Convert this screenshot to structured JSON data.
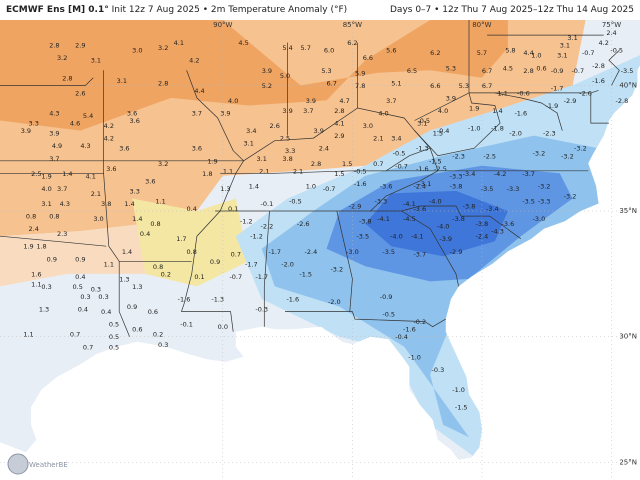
{
  "header": {
    "model": "ECMWF Ens [M] 0.1°",
    "init": "Init 12z 7 Aug 2025",
    "variable": "2m Temperature Anomaly (°F)",
    "valid": "Days 0–7 • 12z Thu 7 Aug 2025–12z Thu 14 Aug 2025"
  },
  "axes": {
    "lon_labels": [
      "90°W",
      "85°W",
      "80°W",
      "75°W"
    ],
    "lat_labels": [
      "40°N",
      "35°N",
      "30°N",
      "25°N"
    ]
  },
  "logo": {
    "text": "WeatherBELL"
  },
  "colors": {
    "warm_strong": "#f0a462",
    "warm": "#f6c28f",
    "warm_light": "#f9dcc0",
    "neutral_warm": "#f4e7a3",
    "neutral": "#e8eef6",
    "cool_light": "#bfe0f5",
    "cool": "#8fc3ee",
    "cool_strong": "#5f96e3",
    "cold": "#3f76d9",
    "ocean": "#ffffff",
    "border": "#333333"
  },
  "values": [
    {
      "lon": -96.5,
      "lat": 41.5,
      "v": "2.8"
    },
    {
      "lon": -95.5,
      "lat": 41.5,
      "v": "2.9"
    },
    {
      "lon": -93.3,
      "lat": 41.3,
      "v": "3.0"
    },
    {
      "lon": -92.3,
      "lat": 41.4,
      "v": "3.2"
    },
    {
      "lon": -91.7,
      "lat": 41.6,
      "v": "4.1"
    },
    {
      "lon": -89.2,
      "lat": 41.6,
      "v": "4.5"
    },
    {
      "lon": -87.5,
      "lat": 41.4,
      "v": "5.4"
    },
    {
      "lon": -86.8,
      "lat": 41.4,
      "v": "5.7"
    },
    {
      "lon": -85.9,
      "lat": 41.3,
      "v": "6.0"
    },
    {
      "lon": -85.0,
      "lat": 41.6,
      "v": "6.2"
    },
    {
      "lon": -84.4,
      "lat": 41.0,
      "v": "6.6"
    },
    {
      "lon": -83.5,
      "lat": 41.3,
      "v": "5.6"
    },
    {
      "lon": -81.8,
      "lat": 41.2,
      "v": "6.2"
    },
    {
      "lon": -80.0,
      "lat": 41.2,
      "v": "5.7"
    },
    {
      "lon": -78.9,
      "lat": 41.3,
      "v": "5.8"
    },
    {
      "lon": -78.2,
      "lat": 41.2,
      "v": "4.4"
    },
    {
      "lon": -76.8,
      "lat": 41.5,
      "v": "3.1"
    },
    {
      "lon": -96.2,
      "lat": 41.0,
      "v": "3.2"
    },
    {
      "lon": -94.9,
      "lat": 40.9,
      "v": "3.1"
    },
    {
      "lon": -91.1,
      "lat": 40.9,
      "v": "4.2"
    },
    {
      "lon": -88.3,
      "lat": 40.5,
      "v": "3.9"
    },
    {
      "lon": -87.6,
      "lat": 40.3,
      "v": "5.0"
    },
    {
      "lon": -86.0,
      "lat": 40.5,
      "v": "5.3"
    },
    {
      "lon": -84.7,
      "lat": 40.4,
      "v": "5.9"
    },
    {
      "lon": -82.7,
      "lat": 40.5,
      "v": "6.5"
    },
    {
      "lon": -81.2,
      "lat": 40.6,
      "v": "5.3"
    },
    {
      "lon": -79.8,
      "lat": 40.5,
      "v": "6.7"
    },
    {
      "lon": -79.0,
      "lat": 40.6,
      "v": "4.5"
    },
    {
      "lon": -78.2,
      "lat": 40.5,
      "v": "2.8"
    },
    {
      "lon": -96.0,
      "lat": 40.2,
      "v": "2.8"
    },
    {
      "lon": -93.9,
      "lat": 40.1,
      "v": "3.1"
    },
    {
      "lon": -92.3,
      "lat": 40.0,
      "v": "2.8"
    },
    {
      "lon": -90.9,
      "lat": 39.7,
      "v": "4.4"
    },
    {
      "lon": -88.3,
      "lat": 39.9,
      "v": "5.2"
    },
    {
      "lon": -85.8,
      "lat": 40.0,
      "v": "6.7"
    },
    {
      "lon": -84.7,
      "lat": 39.9,
      "v": "7.8"
    },
    {
      "lon": -83.3,
      "lat": 40.0,
      "v": "5.1"
    },
    {
      "lon": -81.8,
      "lat": 39.9,
      "v": "6.6"
    },
    {
      "lon": -80.7,
      "lat": 39.9,
      "v": "5.3"
    },
    {
      "lon": -79.8,
      "lat": 39.9,
      "v": "6.7"
    },
    {
      "lon": -95.5,
      "lat": 39.6,
      "v": "2.6"
    },
    {
      "lon": -89.6,
      "lat": 39.3,
      "v": "4.0"
    },
    {
      "lon": -86.6,
      "lat": 39.3,
      "v": "3.9"
    },
    {
      "lon": -85.3,
      "lat": 39.3,
      "v": "4.7"
    },
    {
      "lon": -83.5,
      "lat": 39.3,
      "v": "3.7"
    },
    {
      "lon": -81.2,
      "lat": 39.4,
      "v": "3.9"
    },
    {
      "lon": -96.5,
      "lat": 38.8,
      "v": "4.3"
    },
    {
      "lon": -95.2,
      "lat": 38.7,
      "v": "5.4"
    },
    {
      "lon": -93.5,
      "lat": 38.8,
      "v": "3.6"
    },
    {
      "lon": -91.0,
      "lat": 38.8,
      "v": "3.7"
    },
    {
      "lon": -89.9,
      "lat": 38.8,
      "v": "3.9"
    },
    {
      "lon": -87.5,
      "lat": 38.9,
      "v": "3.9"
    },
    {
      "lon": -86.7,
      "lat": 38.9,
      "v": "3.7"
    },
    {
      "lon": -85.5,
      "lat": 38.9,
      "v": "2.8"
    },
    {
      "lon": -83.8,
      "lat": 38.8,
      "v": "4.0"
    },
    {
      "lon": -81.5,
      "lat": 38.9,
      "v": "4.0"
    },
    {
      "lon": -97.3,
      "lat": 38.4,
      "v": "3.3"
    },
    {
      "lon": -95.7,
      "lat": 38.4,
      "v": "4.6"
    },
    {
      "lon": -94.4,
      "lat": 38.3,
      "v": "4.2"
    },
    {
      "lon": -93.4,
      "lat": 38.5,
      "v": "3.6"
    },
    {
      "lon": -88.0,
      "lat": 38.3,
      "v": "2.6"
    },
    {
      "lon": -86.3,
      "lat": 38.1,
      "v": "3.9"
    },
    {
      "lon": -85.5,
      "lat": 38.4,
      "v": "4.1"
    },
    {
      "lon": -84.4,
      "lat": 38.3,
      "v": "3.0"
    },
    {
      "lon": -82.3,
      "lat": 38.4,
      "v": "3.1"
    },
    {
      "lon": -97.6,
      "lat": 38.1,
      "v": "3.9"
    },
    {
      "lon": -96.5,
      "lat": 38.0,
      "v": "3.9"
    },
    {
      "lon": -94.4,
      "lat": 37.8,
      "v": "4.2"
    },
    {
      "lon": -88.9,
      "lat": 38.1,
      "v": "3.4"
    },
    {
      "lon": -87.6,
      "lat": 37.8,
      "v": "2.5"
    },
    {
      "lon": -85.5,
      "lat": 37.9,
      "v": "2.9"
    },
    {
      "lon": -84.0,
      "lat": 37.8,
      "v": "2.1"
    },
    {
      "lon": -83.3,
      "lat": 37.8,
      "v": "3.4"
    },
    {
      "lon": -81.7,
      "lat": 38.0,
      "v": "1.5"
    },
    {
      "lon": -96.4,
      "lat": 37.5,
      "v": "4.9"
    },
    {
      "lon": -95.3,
      "lat": 37.5,
      "v": "4.3"
    },
    {
      "lon": -93.8,
      "lat": 37.4,
      "v": "3.6"
    },
    {
      "lon": -91.0,
      "lat": 37.4,
      "v": "3.6"
    },
    {
      "lon": -89.0,
      "lat": 37.6,
      "v": "3.1"
    },
    {
      "lon": -87.4,
      "lat": 37.3,
      "v": "3.3"
    },
    {
      "lon": -86.1,
      "lat": 37.4,
      "v": "2.4"
    },
    {
      "lon": -96.5,
      "lat": 37.0,
      "v": "3.7"
    },
    {
      "lon": -94.3,
      "lat": 36.6,
      "v": "3.6"
    },
    {
      "lon": -92.3,
      "lat": 36.8,
      "v": "3.2"
    },
    {
      "lon": -90.4,
      "lat": 36.9,
      "v": "1.9"
    },
    {
      "lon": -88.5,
      "lat": 37.0,
      "v": "3.1"
    },
    {
      "lon": -87.5,
      "lat": 37.0,
      "v": "3.8"
    },
    {
      "lon": -86.4,
      "lat": 36.8,
      "v": "2.8"
    },
    {
      "lon": -85.2,
      "lat": 36.8,
      "v": "1.5"
    },
    {
      "lon": -84.0,
      "lat": 36.8,
      "v": "0.7"
    },
    {
      "lon": -97.2,
      "lat": 36.4,
      "v": "2.5"
    },
    {
      "lon": -96.8,
      "lat": 36.3,
      "v": "1.9"
    },
    {
      "lon": -96.0,
      "lat": 36.4,
      "v": "1.4"
    },
    {
      "lon": -95.1,
      "lat": 36.3,
      "v": "4.1"
    },
    {
      "lon": -92.8,
      "lat": 36.1,
      "v": "3.6"
    },
    {
      "lon": -90.6,
      "lat": 36.4,
      "v": "1.8"
    },
    {
      "lon": -89.8,
      "lat": 36.5,
      "v": "1.1"
    },
    {
      "lon": -88.4,
      "lat": 36.5,
      "v": "2.1"
    },
    {
      "lon": -87.1,
      "lat": 36.5,
      "v": "2.1"
    },
    {
      "lon": -85.5,
      "lat": 36.4,
      "v": "1.5"
    },
    {
      "lon": -84.7,
      "lat": 36.5,
      "v": "-0.5"
    },
    {
      "lon": -83.1,
      "lat": 36.7,
      "v": "-0.7"
    },
    {
      "lon": -82.3,
      "lat": 36.6,
      "v": "-1.6"
    },
    {
      "lon": -81.6,
      "lat": 36.6,
      "v": "-2.5"
    },
    {
      "lon": -80.5,
      "lat": 36.4,
      "v": "-3.4"
    },
    {
      "lon": -79.3,
      "lat": 36.4,
      "v": "-4.2"
    },
    {
      "lon": -78.2,
      "lat": 36.4,
      "v": "-3.7"
    },
    {
      "lon": -96.8,
      "lat": 35.8,
      "v": "4.0"
    },
    {
      "lon": -96.2,
      "lat": 35.8,
      "v": "3.7"
    },
    {
      "lon": -94.9,
      "lat": 35.6,
      "v": "2.1"
    },
    {
      "lon": -93.4,
      "lat": 35.7,
      "v": "3.3"
    },
    {
      "lon": -89.9,
      "lat": 35.8,
      "v": "1.3"
    },
    {
      "lon": -88.8,
      "lat": 35.9,
      "v": "1.4"
    },
    {
      "lon": -86.6,
      "lat": 35.9,
      "v": "1.0"
    },
    {
      "lon": -85.9,
      "lat": 35.8,
      "v": "-0.7"
    },
    {
      "lon": -84.7,
      "lat": 36.0,
      "v": "-1.6"
    },
    {
      "lon": -83.7,
      "lat": 35.9,
      "v": "-3.6"
    },
    {
      "lon": -82.4,
      "lat": 35.9,
      "v": "-2.4"
    },
    {
      "lon": -81.0,
      "lat": 35.9,
      "v": "-3.8"
    },
    {
      "lon": -79.8,
      "lat": 35.8,
      "v": "-3.5"
    },
    {
      "lon": -78.8,
      "lat": 35.8,
      "v": "-3.3"
    },
    {
      "lon": -77.6,
      "lat": 35.9,
      "v": "-3.2"
    },
    {
      "lon": -96.8,
      "lat": 35.2,
      "v": "3.1"
    },
    {
      "lon": -96.1,
      "lat": 35.2,
      "v": "4.3"
    },
    {
      "lon": -94.5,
      "lat": 35.2,
      "v": "3.8"
    },
    {
      "lon": -93.6,
      "lat": 35.2,
      "v": "1.4"
    },
    {
      "lon": -92.4,
      "lat": 35.3,
      "v": "1.1"
    },
    {
      "lon": -91.2,
      "lat": 35.0,
      "v": "0.4"
    },
    {
      "lon": -89.6,
      "lat": 35.0,
      "v": "0.1"
    },
    {
      "lon": -88.3,
      "lat": 35.2,
      "v": "-0.1"
    },
    {
      "lon": -87.2,
      "lat": 35.3,
      "v": "-0.5"
    },
    {
      "lon": -84.9,
      "lat": 35.1,
      "v": "-2.9"
    },
    {
      "lon": -83.9,
      "lat": 35.3,
      "v": "-3.3"
    },
    {
      "lon": -81.8,
      "lat": 35.3,
      "v": "-4.0"
    },
    {
      "lon": -80.5,
      "lat": 35.1,
      "v": "-3.8"
    },
    {
      "lon": -97.4,
      "lat": 34.7,
      "v": "0.8"
    },
    {
      "lon": -96.5,
      "lat": 34.7,
      "v": "0.8"
    },
    {
      "lon": -94.8,
      "lat": 34.6,
      "v": "3.0"
    },
    {
      "lon": -93.3,
      "lat": 34.6,
      "v": "1.4"
    },
    {
      "lon": -92.6,
      "lat": 34.4,
      "v": "0.8"
    },
    {
      "lon": -89.1,
      "lat": 34.5,
      "v": "-1.2"
    },
    {
      "lon": -88.3,
      "lat": 34.3,
      "v": "-2.2"
    },
    {
      "lon": -86.9,
      "lat": 34.4,
      "v": "-2.6"
    },
    {
      "lon": -84.5,
      "lat": 34.5,
      "v": "-3.8"
    },
    {
      "lon": -83.8,
      "lat": 34.6,
      "v": "-4.1"
    },
    {
      "lon": -82.8,
      "lat": 34.6,
      "v": "-4.5"
    },
    {
      "lon": -80.9,
      "lat": 34.6,
      "v": "-3.8"
    },
    {
      "lon": -97.3,
      "lat": 34.2,
      "v": "2.4"
    },
    {
      "lon": -96.2,
      "lat": 34.0,
      "v": "2.3"
    },
    {
      "lon": -93.0,
      "lat": 34.0,
      "v": "0.4"
    },
    {
      "lon": -91.6,
      "lat": 33.8,
      "v": "1.7"
    },
    {
      "lon": -88.7,
      "lat": 33.9,
      "v": "-1.2"
    },
    {
      "lon": -84.6,
      "lat": 33.9,
      "v": "-3.5"
    },
    {
      "lon": -83.3,
      "lat": 33.9,
      "v": "-4.0"
    },
    {
      "lon": -82.5,
      "lat": 33.9,
      "v": "-4.1"
    },
    {
      "lon": -81.4,
      "lat": 33.8,
      "v": "-3.9"
    },
    {
      "lon": -80.0,
      "lat": 33.9,
      "v": "-2.4"
    },
    {
      "lon": -97.5,
      "lat": 33.5,
      "v": "1.9"
    },
    {
      "lon": -97.0,
      "lat": 33.5,
      "v": "1.8"
    },
    {
      "lon": -93.7,
      "lat": 33.3,
      "v": "1.4"
    },
    {
      "lon": -91.2,
      "lat": 33.3,
      "v": "0.8"
    },
    {
      "lon": -89.5,
      "lat": 33.2,
      "v": "0.7"
    },
    {
      "lon": -88.0,
      "lat": 33.3,
      "v": "-1.7"
    },
    {
      "lon": -86.6,
      "lat": 33.3,
      "v": "-2.4"
    },
    {
      "lon": -85.0,
      "lat": 33.3,
      "v": "-3.0"
    },
    {
      "lon": -83.6,
      "lat": 33.3,
      "v": "-3.5"
    },
    {
      "lon": -82.4,
      "lat": 33.2,
      "v": "-3.7"
    },
    {
      "lon": -81.0,
      "lat": 33.3,
      "v": "-2.9"
    },
    {
      "lon": -96.6,
      "lat": 33.0,
      "v": "0.9"
    },
    {
      "lon": -95.5,
      "lat": 33.0,
      "v": "0.9"
    },
    {
      "lon": -94.4,
      "lat": 32.8,
      "v": "1.1"
    },
    {
      "lon": -92.5,
      "lat": 32.7,
      "v": "0.8"
    },
    {
      "lon": -90.3,
      "lat": 32.9,
      "v": "0.9"
    },
    {
      "lon": -88.9,
      "lat": 32.8,
      "v": "-1.7"
    },
    {
      "lon": -87.5,
      "lat": 32.8,
      "v": "-2.0"
    },
    {
      "lon": -85.6,
      "lat": 32.6,
      "v": "-3.2"
    },
    {
      "lon": -97.2,
      "lat": 32.4,
      "v": "1.6"
    },
    {
      "lon": -95.5,
      "lat": 32.3,
      "v": "0.4"
    },
    {
      "lon": -93.8,
      "lat": 32.2,
      "v": "1.3"
    },
    {
      "lon": -92.2,
      "lat": 32.4,
      "v": "0.2"
    },
    {
      "lon": -90.9,
      "lat": 32.3,
      "v": "0.1"
    },
    {
      "lon": -89.5,
      "lat": 32.3,
      "v": "-0.7"
    },
    {
      "lon": -88.5,
      "lat": 32.3,
      "v": "-1.7"
    },
    {
      "lon": -86.8,
      "lat": 32.4,
      "v": "-1.5"
    },
    {
      "lon": -97.2,
      "lat": 32.0,
      "v": "1.1"
    },
    {
      "lon": -96.8,
      "lat": 31.9,
      "v": "0.3"
    },
    {
      "lon": -95.6,
      "lat": 31.9,
      "v": "0.5"
    },
    {
      "lon": -94.9,
      "lat": 31.8,
      "v": "0.3"
    },
    {
      "lon": -93.3,
      "lat": 31.9,
      "v": "1.3"
    },
    {
      "lon": -95.3,
      "lat": 31.5,
      "v": "0.3"
    },
    {
      "lon": -94.6,
      "lat": 31.5,
      "v": "0.3"
    },
    {
      "lon": -91.5,
      "lat": 31.4,
      "v": "-1.6"
    },
    {
      "lon": -90.2,
      "lat": 31.4,
      "v": "-1.3"
    },
    {
      "lon": -87.3,
      "lat": 31.4,
      "v": "-1.6"
    },
    {
      "lon": -85.7,
      "lat": 31.3,
      "v": "-2.0"
    },
    {
      "lon": -83.7,
      "lat": 31.5,
      "v": "-0.9"
    },
    {
      "lon": -96.9,
      "lat": 31.0,
      "v": "1.3"
    },
    {
      "lon": -95.4,
      "lat": 31.0,
      "v": "0.4"
    },
    {
      "lon": -94.5,
      "lat": 30.9,
      "v": "0.4"
    },
    {
      "lon": -93.5,
      "lat": 31.1,
      "v": "0.9"
    },
    {
      "lon": -92.7,
      "lat": 30.9,
      "v": "0.6"
    },
    {
      "lon": -88.5,
      "lat": 31.0,
      "v": "-0.3"
    },
    {
      "lon": -83.6,
      "lat": 30.8,
      "v": "-0.5"
    },
    {
      "lon": -94.2,
      "lat": 30.4,
      "v": "0.5"
    },
    {
      "lon": -93.3,
      "lat": 30.2,
      "v": "0.6"
    },
    {
      "lon": -91.4,
      "lat": 30.4,
      "v": "-0.1"
    },
    {
      "lon": -90.0,
      "lat": 30.3,
      "v": "0.0"
    },
    {
      "lon": -82.8,
      "lat": 30.2,
      "v": "-1.6"
    },
    {
      "lon": -82.4,
      "lat": 30.5,
      "v": "-0.2"
    },
    {
      "lon": -97.5,
      "lat": 30.0,
      "v": "1.1"
    },
    {
      "lon": -95.7,
      "lat": 30.0,
      "v": "0.7"
    },
    {
      "lon": -94.2,
      "lat": 29.9,
      "v": "0.5"
    },
    {
      "lon": -92.5,
      "lat": 30.0,
      "v": "0.2"
    },
    {
      "lon": -83.1,
      "lat": 29.9,
      "v": "-0.4"
    },
    {
      "lon": -95.2,
      "lat": 29.5,
      "v": "0.7"
    },
    {
      "lon": -94.2,
      "lat": 29.5,
      "v": "0.5"
    },
    {
      "lon": -92.3,
      "lat": 29.6,
      "v": "0.3"
    },
    {
      "lon": -82.6,
      "lat": 29.1,
      "v": "-1.0"
    },
    {
      "lon": -81.7,
      "lat": 28.6,
      "v": "-0.3"
    },
    {
      "lon": -80.9,
      "lat": 27.8,
      "v": "-1.0"
    },
    {
      "lon": -80.8,
      "lat": 27.1,
      "v": "-1.5"
    },
    {
      "lon": -83.2,
      "lat": 37.2,
      "v": "-0.5"
    },
    {
      "lon": -82.3,
      "lat": 37.4,
      "v": "-1.3"
    },
    {
      "lon": -81.8,
      "lat": 36.9,
      "v": "-1.5"
    },
    {
      "lon": -80.9,
      "lat": 37.1,
      "v": "-2.3"
    },
    {
      "lon": -79.7,
      "lat": 37.1,
      "v": "-2.5"
    },
    {
      "lon": -77.8,
      "lat": 37.2,
      "v": "-3.2"
    },
    {
      "lon": -76.7,
      "lat": 37.1,
      "v": "-3.2"
    },
    {
      "lon": -82.2,
      "lat": 38.5,
      "v": "0.5"
    },
    {
      "lon": -81.5,
      "lat": 38.1,
      "v": "-0.4"
    },
    {
      "lon": -80.3,
      "lat": 38.2,
      "v": "-1.0"
    },
    {
      "lon": -79.4,
      "lat": 38.2,
      "v": "-1.8"
    },
    {
      "lon": -78.7,
      "lat": 38.0,
      "v": "-2.0"
    },
    {
      "lon": -77.4,
      "lat": 38.0,
      "v": "-2.3"
    },
    {
      "lon": -76.2,
      "lat": 37.4,
      "v": "-3.2"
    },
    {
      "lon": -80.3,
      "lat": 39.0,
      "v": "1.9"
    },
    {
      "lon": -79.4,
      "lat": 38.9,
      "v": "1.4"
    },
    {
      "lon": -78.5,
      "lat": 38.8,
      "v": "-1.6"
    },
    {
      "lon": -77.3,
      "lat": 39.1,
      "v": "-1.9"
    },
    {
      "lon": -76.6,
      "lat": 39.3,
      "v": "-2.9"
    },
    {
      "lon": -79.2,
      "lat": 39.6,
      "v": "1.1"
    },
    {
      "lon": -78.4,
      "lat": 39.6,
      "v": "-0.6"
    },
    {
      "lon": -77.1,
      "lat": 39.8,
      "v": "-1.7"
    },
    {
      "lon": -76.0,
      "lat": 39.6,
      "v": "-2.6"
    },
    {
      "lon": -74.6,
      "lat": 39.3,
      "v": "-2.8"
    },
    {
      "lon": -74.4,
      "lat": 40.5,
      "v": "-3.5"
    },
    {
      "lon": -73.9,
      "lat": 40.0,
      "v": "-1.4"
    },
    {
      "lon": -75.5,
      "lat": 40.1,
      "v": "-1.6"
    },
    {
      "lon": -77.7,
      "lat": 40.6,
      "v": "0.6"
    },
    {
      "lon": -77.1,
      "lat": 40.5,
      "v": "-0.9"
    },
    {
      "lon": -76.3,
      "lat": 40.5,
      "v": "-0.7"
    },
    {
      "lon": -75.5,
      "lat": 40.7,
      "v": "-2.8"
    },
    {
      "lon": -74.2,
      "lat": 40.9,
      "v": "-3.3"
    },
    {
      "lon": -77.9,
      "lat": 41.1,
      "v": "1.0"
    },
    {
      "lon": -76.9,
      "lat": 41.1,
      "v": "3.1"
    },
    {
      "lon": -75.9,
      "lat": 41.2,
      "v": "-0.7"
    },
    {
      "lon": -74.8,
      "lat": 41.3,
      "v": "-0.5"
    },
    {
      "lon": -76.5,
      "lat": 41.8,
      "v": "3.1"
    },
    {
      "lon": -75.3,
      "lat": 41.6,
      "v": "4.2"
    },
    {
      "lon": -74.0,
      "lat": 41.6,
      "v": "3.1"
    },
    {
      "lon": -75.0,
      "lat": 42.0,
      "v": "2.4"
    },
    {
      "lon": -81.0,
      "lat": 36.3,
      "v": "-3.3"
    },
    {
      "lon": -82.2,
      "lat": 36.0,
      "v": "-3.1"
    },
    {
      "lon": -78.2,
      "lat": 35.3,
      "v": "-3.5"
    },
    {
      "lon": -77.6,
      "lat": 35.3,
      "v": "-3.3"
    },
    {
      "lon": -76.6,
      "lat": 35.5,
      "v": "-3.2"
    },
    {
      "lon": -79.0,
      "lat": 34.4,
      "v": "-3.6"
    },
    {
      "lon": -77.8,
      "lat": 34.6,
      "v": "-3.0"
    },
    {
      "lon": -80.0,
      "lat": 34.4,
      "v": "-3.8"
    },
    {
      "lon": -79.4,
      "lat": 34.1,
      "v": "-4.3"
    },
    {
      "lon": -81.5,
      "lat": 34.3,
      "v": "-4.0"
    },
    {
      "lon": -82.8,
      "lat": 35.2,
      "v": "-4.1"
    },
    {
      "lon": -82.4,
      "lat": 35.0,
      "v": "-3.6"
    },
    {
      "lon": -79.6,
      "lat": 35.0,
      "v": "-3.4"
    }
  ]
}
